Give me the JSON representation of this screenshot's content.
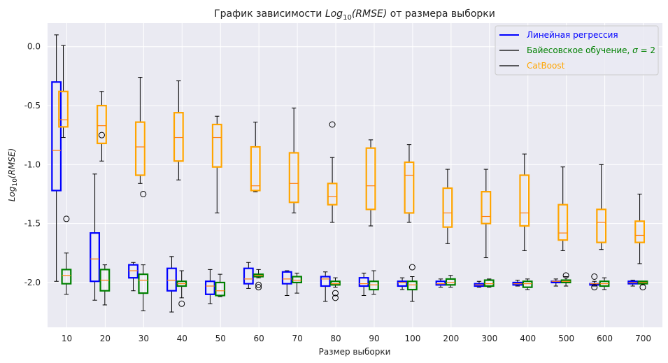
{
  "chart_data": {
    "type": "box",
    "title_main": "График зависимости ",
    "title_math": "Log",
    "title_sub": "10",
    "title_math2": "(RMSE)",
    "title_rest": " от размера выборки",
    "xlabel": "Размер выборки",
    "ylabel_math": "Log",
    "ylabel_sub": "10",
    "ylabel_math2": "(RMSE)",
    "categories": [
      "10",
      "20",
      "30",
      "40",
      "50",
      "60",
      "70",
      "80",
      "90",
      "100",
      "200",
      "300",
      "400",
      "500",
      "600",
      "700"
    ],
    "ylim": [
      -2.38,
      0.2
    ],
    "yticks": [
      0.0,
      -0.5,
      -1.0,
      -1.5,
      -2.0
    ],
    "ytick_labels": [
      "0.0",
      "-0.5",
      "-1.0",
      "-1.5",
      "-2.0"
    ],
    "grid": true,
    "legend_position": "top-right",
    "series": [
      {
        "name": "Линейная регрессия",
        "color": "#0000ff",
        "median_color": "#ff7f0e",
        "boxes": [
          {
            "wlo": -1.99,
            "q1": -1.22,
            "med": -0.88,
            "q3": -0.3,
            "whi": 0.1,
            "fliers": []
          },
          {
            "wlo": -2.15,
            "q1": -1.99,
            "med": -1.8,
            "q3": -1.58,
            "whi": -1.08,
            "fliers": []
          },
          {
            "wlo": -2.07,
            "q1": -1.96,
            "med": -1.9,
            "q3": -1.85,
            "whi": -1.83,
            "fliers": []
          },
          {
            "wlo": -2.25,
            "q1": -2.07,
            "med": -1.98,
            "q3": -1.88,
            "whi": -1.78,
            "fliers": []
          },
          {
            "wlo": -2.18,
            "q1": -2.1,
            "med": -2.03,
            "q3": -1.99,
            "whi": -1.89,
            "fliers": []
          },
          {
            "wlo": -2.05,
            "q1": -2.01,
            "med": -1.97,
            "q3": -1.88,
            "whi": -1.83,
            "fliers": []
          },
          {
            "wlo": -2.11,
            "q1": -2.01,
            "med": -1.97,
            "q3": -1.91,
            "whi": -1.9,
            "fliers": []
          },
          {
            "wlo": -2.16,
            "q1": -2.03,
            "med": -1.97,
            "q3": -1.95,
            "whi": -1.91,
            "fliers": []
          },
          {
            "wlo": -2.11,
            "q1": -2.03,
            "med": -2.01,
            "q3": -1.96,
            "whi": -1.92,
            "fliers": []
          },
          {
            "wlo": -2.06,
            "q1": -2.03,
            "med": -2.0,
            "q3": -1.99,
            "whi": -1.96,
            "fliers": []
          },
          {
            "wlo": -2.04,
            "q1": -2.02,
            "med": -2.01,
            "q3": -1.99,
            "whi": -1.97,
            "fliers": []
          },
          {
            "wlo": -2.04,
            "q1": -2.03,
            "med": -2.02,
            "q3": -2.01,
            "whi": -1.99,
            "fliers": []
          },
          {
            "wlo": -2.03,
            "q1": -2.02,
            "med": -2.01,
            "q3": -2.0,
            "whi": -1.98,
            "fliers": []
          },
          {
            "wlo": -2.03,
            "q1": -2.0,
            "med": -1.99,
            "q3": -1.99,
            "whi": -1.97,
            "fliers": []
          },
          {
            "wlo": -2.03,
            "q1": -2.02,
            "med": -2.01,
            "q3": -2.01,
            "whi": -1.99,
            "fliers": [
              -2.04,
              -1.95
            ]
          },
          {
            "wlo": -2.03,
            "q1": -2.01,
            "med": -2.0,
            "q3": -1.99,
            "whi": -1.98,
            "fliers": []
          }
        ]
      },
      {
        "name": "Байесовское обучение, σ = 2",
        "color": "#008000",
        "median_color": "#ff7f0e",
        "boxes": [
          {
            "wlo": -2.1,
            "q1": -2.01,
            "med": -1.94,
            "q3": -1.89,
            "whi": -1.75,
            "fliers": [
              -1.46
            ]
          },
          {
            "wlo": -2.19,
            "q1": -2.07,
            "med": -1.98,
            "q3": -1.89,
            "whi": -1.85,
            "fliers": []
          },
          {
            "wlo": -2.24,
            "q1": -2.09,
            "med": -1.98,
            "q3": -1.93,
            "whi": -1.85,
            "fliers": [
              -1.25
            ]
          },
          {
            "wlo": -2.13,
            "q1": -2.03,
            "med": -2.01,
            "q3": -1.99,
            "whi": -1.9,
            "fliers": [
              -2.18
            ]
          },
          {
            "wlo": -2.12,
            "q1": -2.11,
            "med": -2.07,
            "q3": -2.0,
            "whi": -1.93,
            "fliers": []
          },
          {
            "wlo": -1.96,
            "q1": -1.95,
            "med": -1.94,
            "q3": -1.93,
            "whi": -1.89,
            "fliers": [
              -2.04,
              -2.02
            ]
          },
          {
            "wlo": -2.09,
            "q1": -2.0,
            "med": -1.98,
            "q3": -1.95,
            "whi": -1.92,
            "fliers": []
          },
          {
            "wlo": -2.04,
            "q1": -2.02,
            "med": -2.01,
            "q3": -1.99,
            "whi": -1.96,
            "fliers": [
              -2.13,
              -2.09
            ]
          },
          {
            "wlo": -2.1,
            "q1": -2.06,
            "med": -2.02,
            "q3": -1.99,
            "whi": -1.9,
            "fliers": []
          },
          {
            "wlo": -2.16,
            "q1": -2.06,
            "med": -2.02,
            "q3": -1.99,
            "whi": -1.95,
            "fliers": [
              -1.87
            ]
          },
          {
            "wlo": -2.04,
            "q1": -2.02,
            "med": -2.0,
            "q3": -1.97,
            "whi": -1.94,
            "fliers": []
          },
          {
            "wlo": -2.04,
            "q1": -2.03,
            "med": -2.01,
            "q3": -1.98,
            "whi": -1.97,
            "fliers": []
          },
          {
            "wlo": -2.06,
            "q1": -2.04,
            "med": -2.01,
            "q3": -1.99,
            "whi": -1.97,
            "fliers": []
          },
          {
            "wlo": -2.03,
            "q1": -2.0,
            "med": -1.99,
            "q3": -1.98,
            "whi": -1.95,
            "fliers": [
              -1.94
            ]
          },
          {
            "wlo": -2.06,
            "q1": -2.03,
            "med": -2.01,
            "q3": -1.99,
            "whi": -1.96,
            "fliers": []
          },
          {
            "wlo": -2.02,
            "q1": -2.01,
            "med": -2.0,
            "q3": -1.99,
            "whi": -1.99,
            "fliers": [
              -2.04
            ]
          }
        ]
      },
      {
        "name": "CatBoost",
        "color": "#ffa500",
        "median_color": "#ff7f0e",
        "boxes": [
          {
            "wlo": -0.77,
            "q1": -0.68,
            "med": -0.62,
            "q3": -0.38,
            "whi": 0.01,
            "fliers": []
          },
          {
            "wlo": -0.97,
            "q1": -0.82,
            "med": -0.67,
            "q3": -0.5,
            "whi": -0.38,
            "fliers": [
              -0.75
            ]
          },
          {
            "wlo": -1.16,
            "q1": -1.09,
            "med": -0.85,
            "q3": -0.64,
            "whi": -0.26,
            "fliers": []
          },
          {
            "wlo": -1.13,
            "q1": -0.97,
            "med": -0.77,
            "q3": -0.56,
            "whi": -0.29,
            "fliers": []
          },
          {
            "wlo": -1.41,
            "q1": -1.02,
            "med": -0.77,
            "q3": -0.66,
            "whi": -0.59,
            "fliers": []
          },
          {
            "wlo": -1.23,
            "q1": -1.22,
            "med": -1.18,
            "q3": -0.85,
            "whi": -0.64,
            "fliers": []
          },
          {
            "wlo": -1.41,
            "q1": -1.32,
            "med": -1.16,
            "q3": -0.9,
            "whi": -0.52,
            "fliers": []
          },
          {
            "wlo": -1.49,
            "q1": -1.34,
            "med": -1.27,
            "q3": -1.16,
            "whi": -0.94,
            "fliers": [
              -0.66
            ]
          },
          {
            "wlo": -1.52,
            "q1": -1.38,
            "med": -1.18,
            "q3": -0.86,
            "whi": -0.79,
            "fliers": []
          },
          {
            "wlo": -1.49,
            "q1": -1.41,
            "med": -1.09,
            "q3": -0.98,
            "whi": -0.83,
            "fliers": []
          },
          {
            "wlo": -1.67,
            "q1": -1.53,
            "med": -1.41,
            "q3": -1.2,
            "whi": -1.04,
            "fliers": []
          },
          {
            "wlo": -1.79,
            "q1": -1.5,
            "med": -1.44,
            "q3": -1.23,
            "whi": -1.04,
            "fliers": []
          },
          {
            "wlo": -1.73,
            "q1": -1.52,
            "med": -1.41,
            "q3": -1.09,
            "whi": -0.91,
            "fliers": []
          },
          {
            "wlo": -1.73,
            "q1": -1.64,
            "med": -1.58,
            "q3": -1.34,
            "whi": -1.02,
            "fliers": []
          },
          {
            "wlo": -1.72,
            "q1": -1.66,
            "med": -1.49,
            "q3": -1.38,
            "whi": -1.0,
            "fliers": []
          },
          {
            "wlo": -1.84,
            "q1": -1.66,
            "med": -1.6,
            "q3": -1.48,
            "whi": -1.25,
            "fliers": []
          }
        ]
      }
    ],
    "legend": {
      "entries": [
        {
          "label": "Линейная регрессия",
          "line_color": "#0000ff",
          "text_color": "#0000ff"
        },
        {
          "label": "Байесовское обучение, ",
          "math": "σ",
          "suffix": " = 2",
          "line_color": "#000000",
          "text_color": "#008000"
        },
        {
          "label": "CatBoost",
          "line_color": "#000000",
          "text_color": "#ffa500"
        }
      ]
    }
  }
}
